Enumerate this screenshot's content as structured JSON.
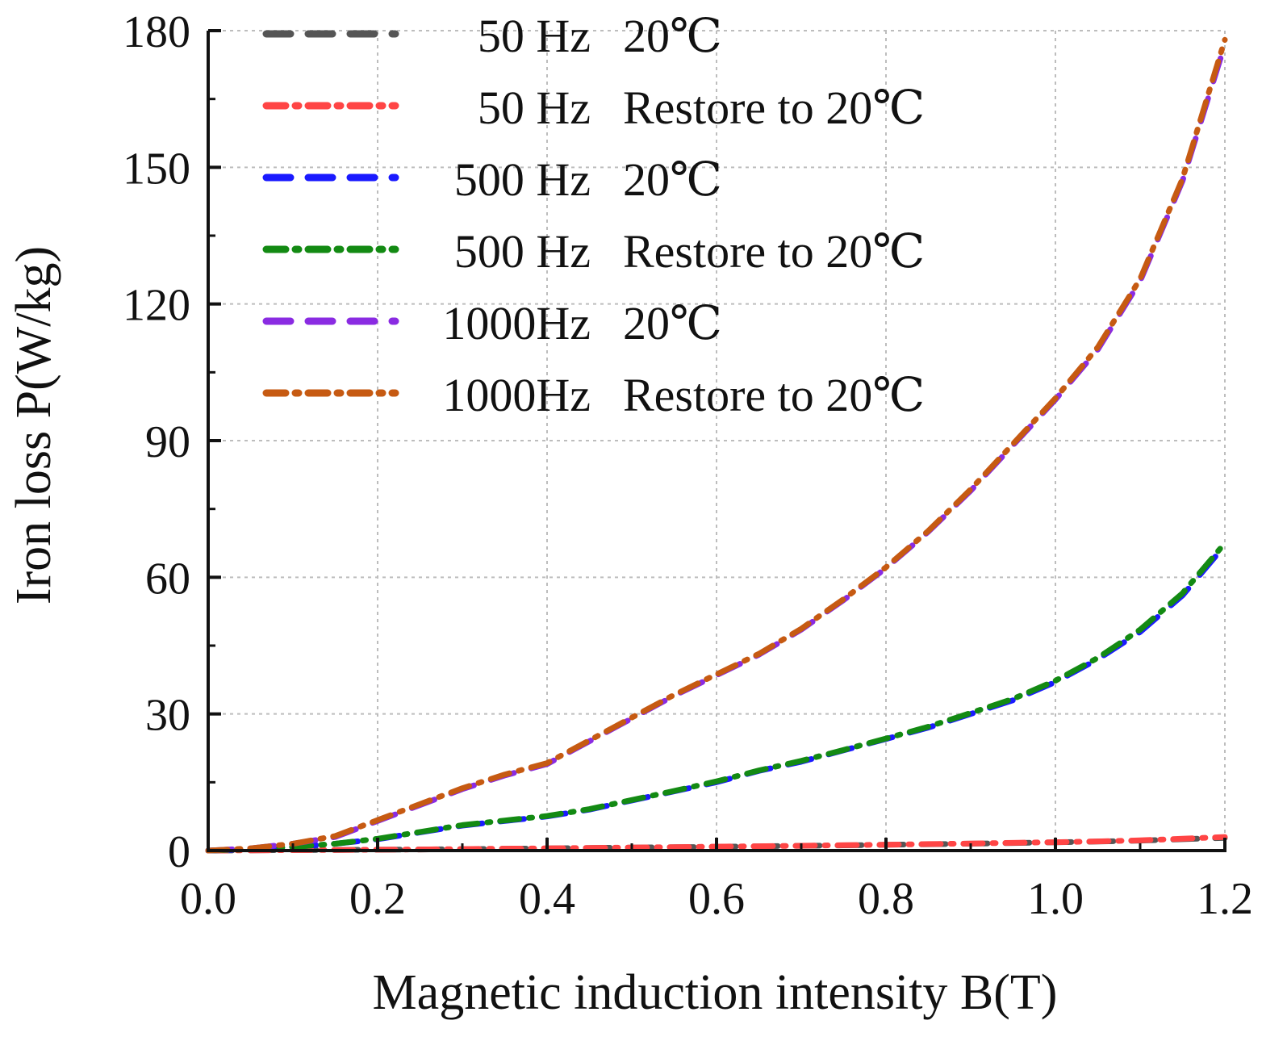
{
  "chart_data": {
    "type": "line",
    "title": "",
    "xlabel": "Magnetic induction intensity B(T)",
    "ylabel": "Iron loss P(W/kg)",
    "xlim": [
      0,
      1.2
    ],
    "ylim": [
      0,
      180
    ],
    "xticks": [
      "0.0",
      "0.2",
      "0.4",
      "0.6",
      "0.8",
      "1.0",
      "1.2"
    ],
    "yticks": [
      "0",
      "30",
      "60",
      "90",
      "120",
      "150",
      "180"
    ],
    "grid": true,
    "legend_position": "top-left",
    "x": [
      0,
      0.05,
      0.1,
      0.15,
      0.2,
      0.25,
      0.3,
      0.35,
      0.4,
      0.45,
      0.5,
      0.55,
      0.6,
      0.65,
      0.7,
      0.75,
      0.8,
      0.85,
      0.9,
      0.95,
      1.0,
      1.05,
      1.1,
      1.15,
      1.2
    ],
    "series": [
      {
        "name": "50 Hz 20℃",
        "freq": "50 Hz",
        "cond": "20℃",
        "color": "#555555",
        "dash": "dash",
        "values": [
          0,
          0.05,
          0.1,
          0.15,
          0.2,
          0.25,
          0.32,
          0.4,
          0.48,
          0.56,
          0.65,
          0.74,
          0.84,
          0.94,
          1.05,
          1.16,
          1.28,
          1.4,
          1.53,
          1.67,
          1.82,
          1.98,
          2.2,
          2.5,
          2.8
        ]
      },
      {
        "name": "50 Hz Restore to 20℃",
        "freq": "50 Hz",
        "cond": "Restore to 20℃",
        "color": "#ff4545",
        "dash": "dashdot",
        "values": [
          0,
          0.05,
          0.1,
          0.15,
          0.2,
          0.25,
          0.33,
          0.42,
          0.5,
          0.58,
          0.67,
          0.76,
          0.86,
          0.96,
          1.07,
          1.18,
          1.3,
          1.43,
          1.56,
          1.7,
          1.85,
          2.02,
          2.25,
          2.6,
          3.0
        ]
      },
      {
        "name": "500 Hz 20℃",
        "freq": "500 Hz",
        "cond": "20℃",
        "color": "#1a1aff",
        "dash": "dash",
        "values": [
          0,
          0.3,
          0.8,
          1.5,
          2.5,
          4.0,
          5.5,
          6.5,
          7.5,
          9.0,
          11.0,
          13.0,
          15.0,
          17.5,
          19.5,
          22.0,
          24.5,
          27.0,
          30.0,
          33.0,
          37.0,
          42.0,
          48.0,
          56.0,
          67.0
        ]
      },
      {
        "name": "500 Hz Restore to 20℃",
        "freq": "500 Hz",
        "cond": "Restore to 20℃",
        "color": "#138a13",
        "dash": "dashdot",
        "values": [
          0,
          0.3,
          0.8,
          1.5,
          2.6,
          4.1,
          5.6,
          6.6,
          7.6,
          9.1,
          11.1,
          13.1,
          15.2,
          17.6,
          19.7,
          22.1,
          24.6,
          27.2,
          30.2,
          33.3,
          37.3,
          42.3,
          48.5,
          56.5,
          67.5
        ]
      },
      {
        "name": "1000Hz 20℃",
        "freq": "1000Hz",
        "cond": "20℃",
        "color": "#8a2be2",
        "dash": "dash",
        "values": [
          0,
          0.5,
          1.5,
          3.0,
          6.5,
          10.0,
          13.5,
          16.5,
          19.0,
          24.0,
          29.0,
          34.0,
          38.5,
          43.0,
          48.5,
          55.0,
          62.0,
          70.0,
          79.0,
          89.0,
          99.0,
          110.0,
          125.0,
          147.0,
          177.0
        ]
      },
      {
        "name": "1000Hz Restore to 20℃",
        "freq": "1000Hz",
        "cond": "Restore to 20℃",
        "color": "#c65a12",
        "dash": "dashdot",
        "values": [
          0,
          0.5,
          1.5,
          3.2,
          6.7,
          10.2,
          13.7,
          16.7,
          19.2,
          24.2,
          29.2,
          34.2,
          38.7,
          43.2,
          48.7,
          55.2,
          62.2,
          70.2,
          79.3,
          89.3,
          99.3,
          110.5,
          125.5,
          147.5,
          178.0
        ]
      }
    ]
  }
}
